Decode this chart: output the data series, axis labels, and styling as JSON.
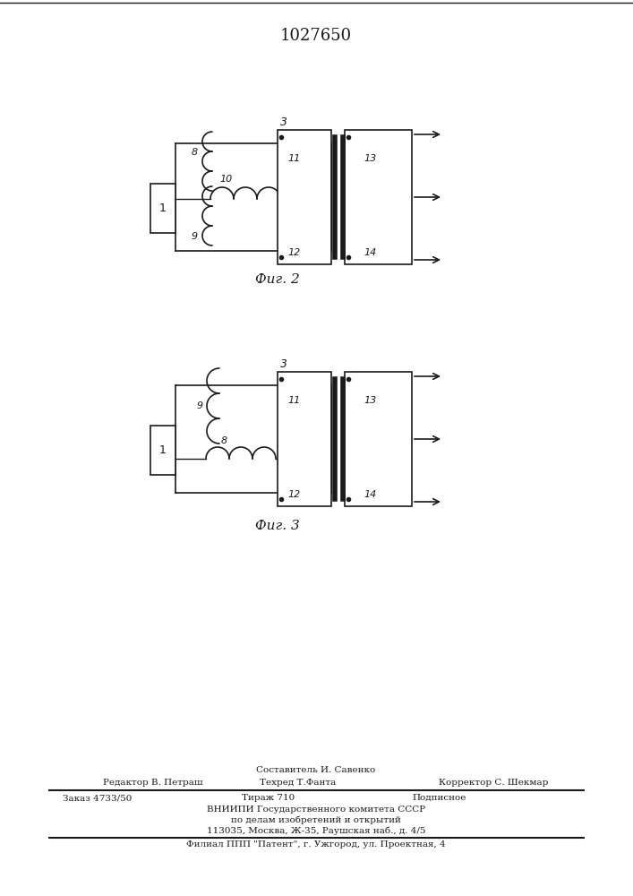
{
  "title": "1027650",
  "fig2_caption": "Фиг. 2",
  "fig3_caption": "Фиг. 3",
  "footer_line0": "Составитель И. Савенко",
  "footer_line1a": "Редактор В. Петраш",
  "footer_line1b": "Техред Т.Фанта",
  "footer_line1c": "Корректор С. Шекмар",
  "footer_line2a": "Заказ 4733/50",
  "footer_line2b": "Тираж 710",
  "footer_line2c": "Подписное",
  "footer_line3": "ВНИИПИ Государственного комитета СССР",
  "footer_line4": "по делам изобретений и открытий",
  "footer_line5": "113035, Москва, Ж-35, Раушская наб., д. 4/5",
  "footer_line6": "Филиал ППП \"Патент\", г. Ужгород, ул. Проектная, 4",
  "bg_color": "#ffffff",
  "line_color": "#1a1a1a"
}
